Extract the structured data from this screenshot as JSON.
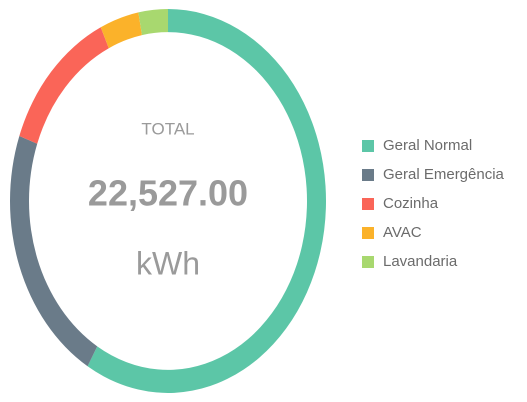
{
  "chart_data": {
    "type": "donut",
    "categories": [
      "Geral Normal",
      "Geral Emergência",
      "Cozinha",
      "AVAC",
      "Lavandaria"
    ],
    "values": [
      58.5,
      22,
      12.5,
      4,
      3
    ],
    "colors": [
      "#5cc6a7",
      "#6a7b89",
      "#fa6558",
      "#fbb22a",
      "#a8d86f"
    ],
    "center_title": "TOTAL",
    "center_value": "22,527.00",
    "center_unit": "kWh",
    "legend": "right"
  }
}
